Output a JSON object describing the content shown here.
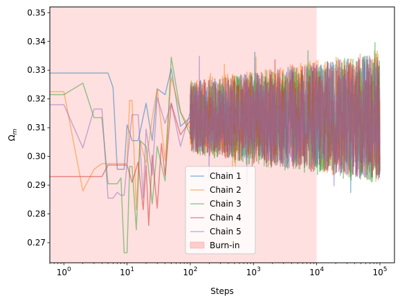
{
  "chart_data": {
    "type": "line",
    "title": "",
    "xlabel": "Steps",
    "ylabel": "Ω",
    "ylabel_sub": "m",
    "xscale": "log",
    "xlim": [
      0.6,
      170000
    ],
    "ylim": [
      0.263,
      0.352
    ],
    "grid": false,
    "legend_position": "lower-center",
    "x_ticks": [
      {
        "value": 1,
        "base": "10",
        "exp": "0"
      },
      {
        "value": 10,
        "base": "10",
        "exp": "1"
      },
      {
        "value": 100,
        "base": "10",
        "exp": "2"
      },
      {
        "value": 1000,
        "base": "10",
        "exp": "3"
      },
      {
        "value": 10000,
        "base": "10",
        "exp": "4"
      },
      {
        "value": 100000,
        "base": "10",
        "exp": "5"
      }
    ],
    "y_ticks": [
      "0.27",
      "0.28",
      "0.29",
      "0.30",
      "0.31",
      "0.32",
      "0.33",
      "0.34",
      "0.35"
    ],
    "burn_in": {
      "name": "Burn-in",
      "x_start": 0.6,
      "x_end": 10000,
      "color": "#ffcccc"
    },
    "series": [
      {
        "name": "Chain 1",
        "color": "#1f77b4",
        "x": [
          0,
          1,
          2,
          3,
          4,
          5,
          6,
          7,
          8,
          9,
          10,
          12,
          15,
          20,
          25,
          30,
          40,
          50,
          70,
          100
        ],
        "y": [
          0.329,
          0.329,
          0.329,
          0.329,
          0.329,
          0.329,
          0.324,
          0.2955,
          0.2955,
          0.2955,
          0.311,
          0.3055,
          0.3055,
          0.3185,
          0.3055,
          0.3235,
          0.3215,
          0.3305,
          0.3105,
          0.3135
        ],
        "band_lo": 0.295,
        "band_hi": 0.333
      },
      {
        "name": "Chain 2",
        "color": "#ff7f0e",
        "x": [
          0,
          1,
          2,
          3,
          4,
          5,
          6,
          7,
          8,
          9,
          10,
          11,
          12,
          14,
          16,
          20,
          25,
          30,
          40,
          50,
          70,
          100
        ],
        "y": [
          0.3225,
          0.3225,
          0.288,
          0.2955,
          0.2975,
          0.2975,
          0.2975,
          0.2975,
          0.2975,
          0.2975,
          0.2975,
          0.3195,
          0.3195,
          0.2815,
          0.3055,
          0.2975,
          0.3135,
          0.3235,
          0.2985,
          0.3275,
          0.3155,
          0.3095
        ],
        "band_lo": 0.294,
        "band_hi": 0.334
      },
      {
        "name": "Chain 3",
        "color": "#2ca02c",
        "x": [
          0,
          1,
          2,
          3,
          4,
          5,
          6,
          7,
          8,
          9,
          10,
          11,
          12,
          14,
          16,
          20,
          25,
          30,
          40,
          50,
          70,
          100
        ],
        "y": [
          0.3215,
          0.3215,
          0.3255,
          0.3135,
          0.3135,
          0.2905,
          0.2905,
          0.2905,
          0.2925,
          0.2665,
          0.2665,
          0.2965,
          0.2965,
          0.2745,
          0.3055,
          0.3035,
          0.2835,
          0.3035,
          0.2915,
          0.3345,
          0.3155,
          0.3075
        ],
        "band_lo": 0.293,
        "band_hi": 0.333
      },
      {
        "name": "Chain 4",
        "color": "#d62728",
        "x": [
          0,
          1,
          2,
          3,
          4,
          5,
          6,
          7,
          8,
          9,
          10,
          12,
          15,
          18,
          20,
          22,
          25,
          30,
          35,
          40,
          50,
          70,
          100
        ],
        "y": [
          0.293,
          0.293,
          0.293,
          0.293,
          0.293,
          0.297,
          0.297,
          0.297,
          0.297,
          0.297,
          0.297,
          0.291,
          0.298,
          0.2815,
          0.297,
          0.276,
          0.3005,
          0.282,
          0.3045,
          0.2935,
          0.3185,
          0.3075,
          0.3125
        ],
        "band_lo": 0.294,
        "band_hi": 0.333
      },
      {
        "name": "Chain 5",
        "color": "#9467bd",
        "x": [
          0,
          1,
          2,
          3,
          4,
          5,
          6,
          7,
          8,
          9,
          10,
          12,
          15,
          18,
          20,
          25,
          30,
          40,
          50,
          70,
          100
        ],
        "y": [
          0.318,
          0.318,
          0.303,
          0.3165,
          0.3165,
          0.2855,
          0.2855,
          0.2875,
          0.2865,
          0.2865,
          0.2975,
          0.3145,
          0.3145,
          0.2855,
          0.3095,
          0.2935,
          0.3205,
          0.3115,
          0.3185,
          0.3035,
          0.3155
        ],
        "band_lo": 0.294,
        "band_hi": 0.333
      }
    ]
  }
}
